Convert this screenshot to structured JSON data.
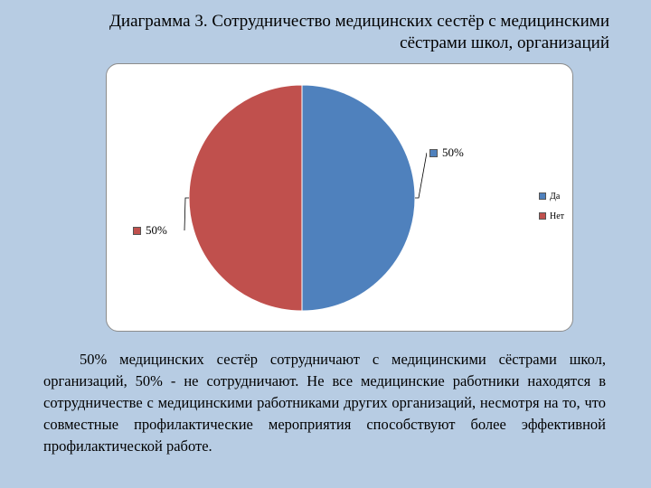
{
  "title_lines": [
    "Диаграмма 3. Сотрудничество медицинских сестёр с медицинскими",
    "сёстрами школ, организаций"
  ],
  "chart_data": {
    "type": "pie",
    "slices": [
      {
        "name": "Да",
        "value": 50,
        "label": "50%",
        "color": "#4f81bd"
      },
      {
        "name": "Нет",
        "value": 50,
        "label": "50%",
        "color": "#c0504d"
      }
    ],
    "legend": {
      "placement": "right",
      "entries": [
        "Да",
        "Нет"
      ]
    },
    "start_angle_deg": 0,
    "direction": "clockwise"
  },
  "paragraph": "50% медицинских сестёр сотрудничают с медицинскими сёстрами школ, организаций, 50% - не сотрудничают. Не все медицинские работники находятся в сотрудничестве с медицинскими работниками других организаций, несмотря на то, что совместные профилактические мероприятия способствуют более эффективной профилактической работе."
}
